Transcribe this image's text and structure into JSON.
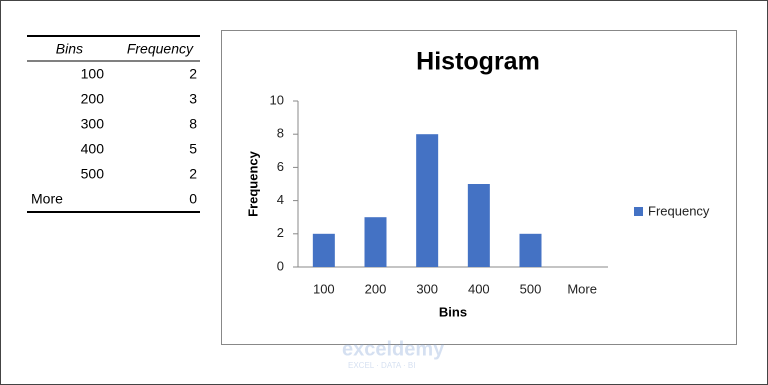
{
  "table": {
    "header": [
      "Bins",
      "Frequency"
    ],
    "rows": [
      [
        100,
        2
      ],
      [
        200,
        3
      ],
      [
        300,
        8
      ],
      [
        400,
        5
      ],
      [
        500,
        2
      ],
      [
        "More",
        0
      ]
    ]
  },
  "chart_data": {
    "type": "bar",
    "title": "Histogram",
    "x_label": "Bins",
    "y_label": "Frequency",
    "categories": [
      "100",
      "200",
      "300",
      "400",
      "500",
      "More"
    ],
    "series": [
      {
        "name": "Frequency",
        "color": "#4472c4",
        "values": [
          2,
          3,
          8,
          5,
          2,
          0
        ]
      }
    ],
    "ylim": [
      0,
      10
    ],
    "yticks": [
      0,
      2,
      4,
      6,
      8,
      10
    ],
    "grid": false,
    "legend": "right"
  },
  "watermark": {
    "name": "exceldemy",
    "tagline": "EXCEL · DATA · BI"
  }
}
